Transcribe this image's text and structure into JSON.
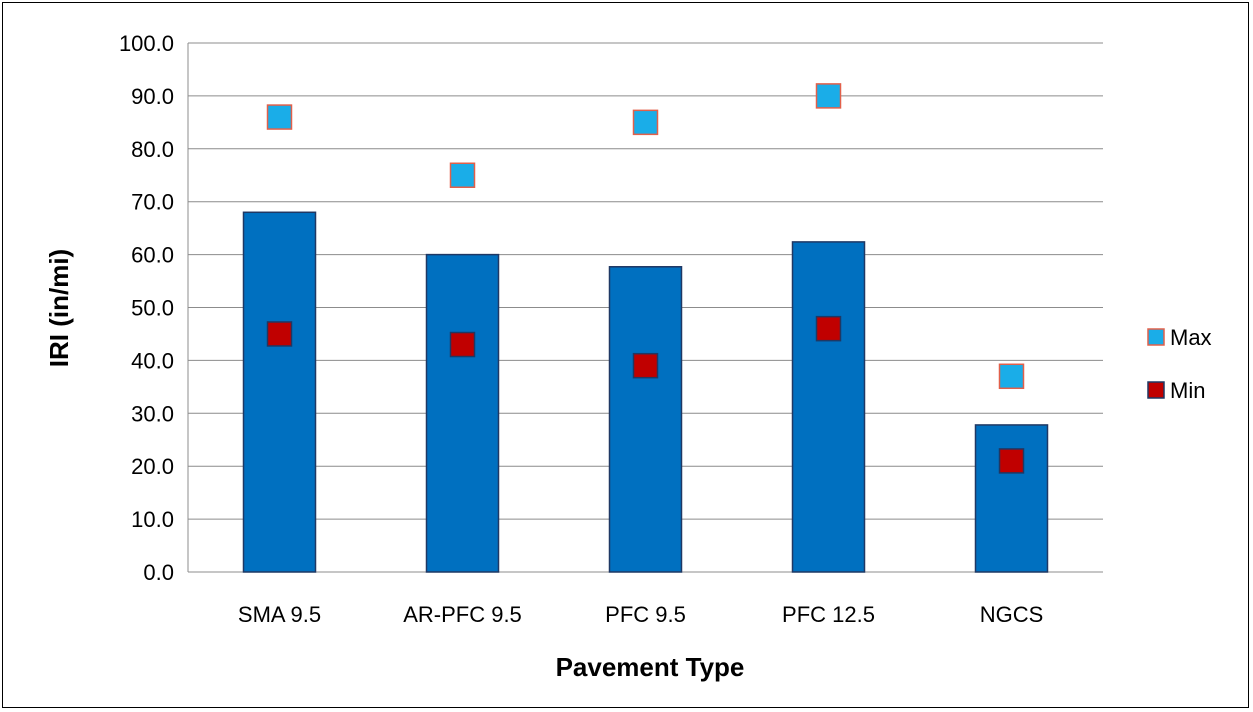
{
  "chart_data": {
    "type": "bar",
    "categories": [
      "SMA 9.5",
      "AR-PFC 9.5",
      "PFC 9.5",
      "PFC 12.5",
      "NGCS"
    ],
    "values": [
      68.0,
      60.0,
      57.7,
      62.4,
      27.8
    ],
    "markers": [
      {
        "name": "Max",
        "values": [
          86.0,
          75.0,
          85.0,
          90.0,
          37.0
        ],
        "color": "#1AADE8",
        "stroke": "#E2604A"
      },
      {
        "name": "Min",
        "values": [
          45.0,
          43.0,
          39.0,
          46.0,
          21.0
        ],
        "color": "#C00000",
        "stroke": "#1F3864"
      }
    ],
    "bar_color": "#0070C0",
    "bar_stroke": "#1F3864",
    "xlabel": "Pavement Type",
    "ylabel": "IRI (in/mi)",
    "ylim": [
      0,
      100
    ],
    "yticks": [
      "0.0",
      "10.0",
      "20.0",
      "30.0",
      "40.0",
      "50.0",
      "60.0",
      "70.0",
      "80.0",
      "90.0",
      "100.0"
    ],
    "grid": true,
    "legend_position": "right"
  }
}
